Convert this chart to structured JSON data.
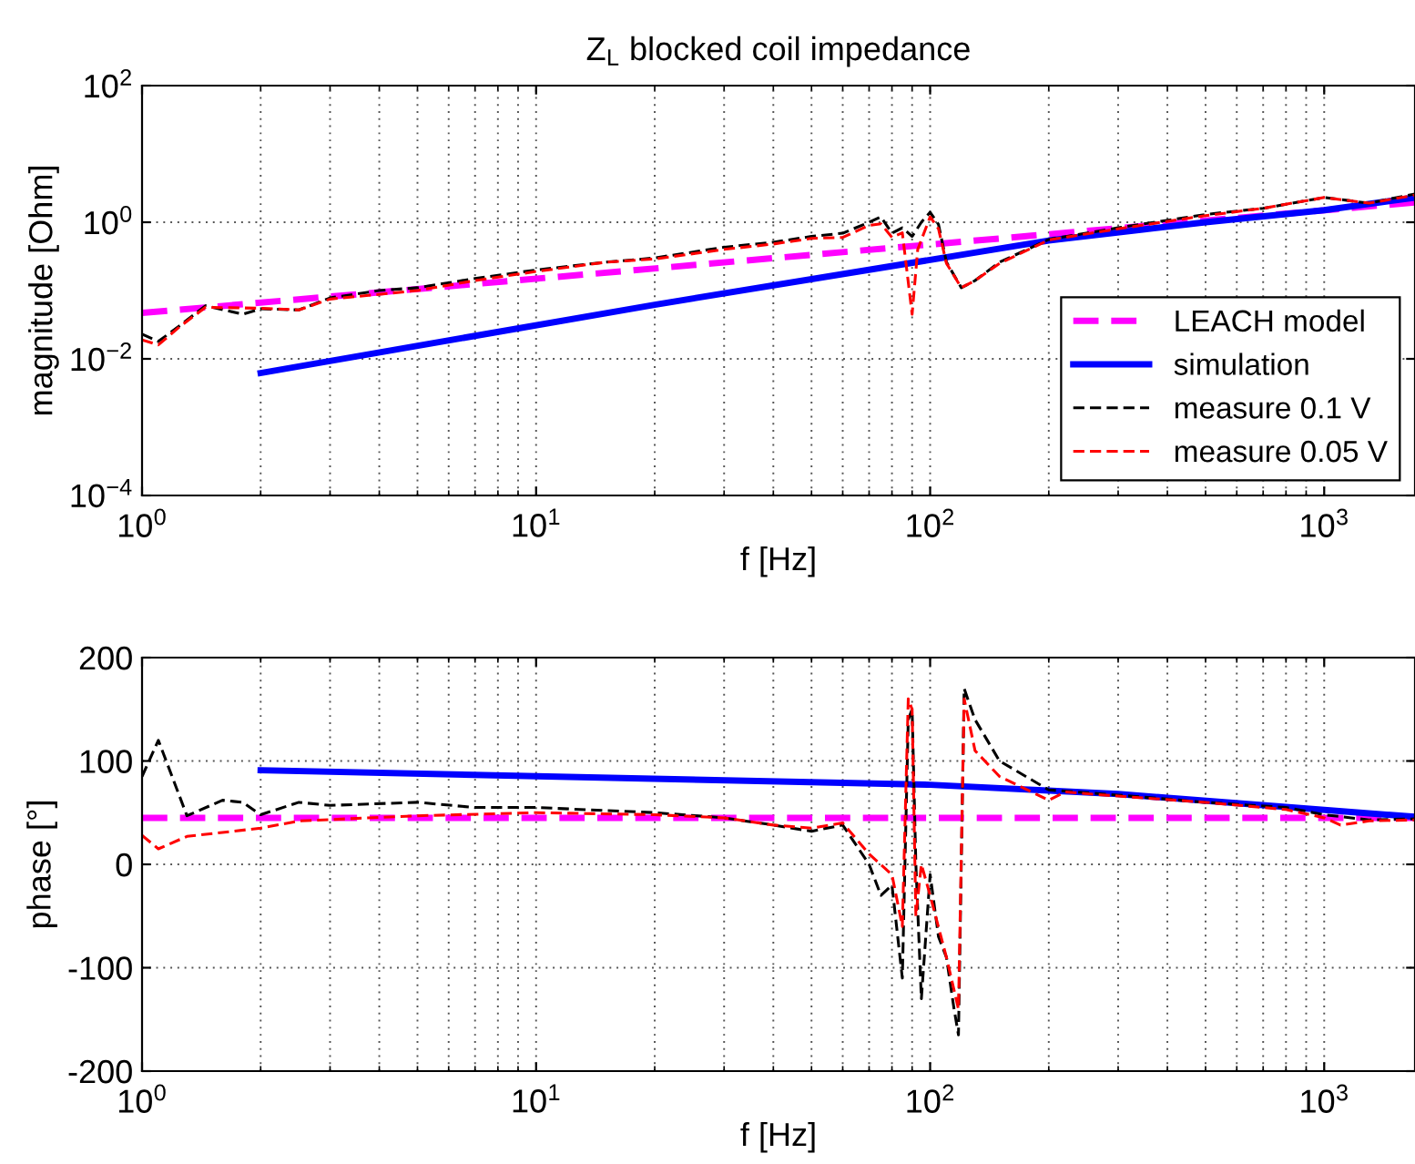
{
  "chart_data": [
    {
      "type": "line",
      "title": "Z$_{L}$ blocked coil impedance",
      "xlabel": "f [Hz]",
      "ylabel": "magnitude [Ohm]",
      "log": "xy",
      "grid": true,
      "legend": "bottom right",
      "xlim": [
        1,
        1700
      ],
      "xticks": [
        {
          "value": 1,
          "label": "10$^{0}$"
        },
        {
          "value": 10,
          "label": "10$^{1}$"
        },
        {
          "value": 100,
          "label": "10$^{2}$"
        },
        {
          "value": 1000,
          "label": "10$^{3}$"
        }
      ],
      "ylim": [
        0.0001,
        100
      ],
      "yticks": [
        {
          "value": 0.0001,
          "label": "10$^{−4}$"
        },
        {
          "value": 0.01,
          "label": "10$^{−2}$"
        },
        {
          "value": 1,
          "label": "10$^{0}$"
        },
        {
          "value": 100,
          "label": "10$^{2}$"
        }
      ],
      "series": [
        {
          "name": "LEACH model",
          "color": "#ff00ff",
          "line_style": "dashed",
          "x": [
            1,
            1700
          ],
          "values": [
            0.047,
            1.95
          ]
        },
        {
          "name": "simulation",
          "color": "#0000ff",
          "line_style": "solid",
          "x": [
            2,
            20,
            200,
            500,
            1000,
            1700
          ],
          "values": [
            0.0062,
            0.062,
            0.54,
            1.0,
            1.5,
            2.3
          ]
        },
        {
          "name": "measure 0.1 V",
          "color": "#000000",
          "line_style": "dashed",
          "x": [
            1,
            1.1,
            1.25,
            1.45,
            1.8,
            2,
            2.5,
            3,
            4,
            5,
            7,
            10,
            15,
            20,
            30,
            40,
            50,
            60,
            70,
            75,
            80,
            85,
            90,
            95,
            100,
            105,
            110,
            120,
            130,
            150,
            200,
            300,
            500,
            700,
            1000,
            1300,
            1700
          ],
          "values": [
            0.023,
            0.018,
            0.031,
            0.06,
            0.045,
            0.054,
            0.052,
            0.078,
            0.1,
            0.11,
            0.15,
            0.2,
            0.26,
            0.3,
            0.43,
            0.51,
            0.62,
            0.69,
            1.0,
            1.2,
            0.69,
            0.83,
            0.62,
            1.0,
            1.4,
            0.93,
            0.26,
            0.11,
            0.14,
            0.26,
            0.56,
            0.83,
            1.3,
            1.6,
            2.3,
            1.9,
            2.6
          ]
        },
        {
          "name": "measure 0.05 V",
          "color": "#ff0000",
          "line_style": "dashed",
          "x": [
            1,
            1.1,
            1.25,
            1.45,
            2,
            2.5,
            3,
            5,
            7,
            10,
            15,
            20,
            30,
            40,
            50,
            60,
            70,
            75,
            80,
            85,
            90,
            93,
            100,
            105,
            110,
            120,
            130,
            150,
            200,
            300,
            500,
            700,
            1000,
            1300,
            1700
          ],
          "values": [
            0.019,
            0.016,
            0.03,
            0.057,
            0.055,
            0.052,
            0.075,
            0.1,
            0.14,
            0.19,
            0.26,
            0.29,
            0.4,
            0.48,
            0.58,
            0.6,
            0.9,
            0.95,
            0.6,
            0.7,
            0.045,
            0.4,
            1.2,
            0.8,
            0.25,
            0.11,
            0.14,
            0.25,
            0.55,
            0.8,
            1.25,
            1.6,
            2.3,
            1.9,
            2.5
          ]
        }
      ]
    },
    {
      "type": "line",
      "xlabel": "f [Hz]",
      "ylabel": "phase [°]",
      "log": "x",
      "grid": true,
      "xlim": [
        1,
        1700
      ],
      "xticks": [
        {
          "value": 1,
          "label": "10$^{0}$"
        },
        {
          "value": 10,
          "label": "10$^{1}$"
        },
        {
          "value": 100,
          "label": "10$^{2}$"
        },
        {
          "value": 1000,
          "label": "10$^{3}$"
        }
      ],
      "ylim": [
        -200,
        200
      ],
      "yticks": [
        -200,
        -100,
        0,
        100,
        200
      ],
      "series": [
        {
          "color": "#ff00ff",
          "line_style": "dashed",
          "x": [
            1,
            1700
          ],
          "values": [
            45,
            45
          ]
        },
        {
          "color": "#0000ff",
          "line_style": "solid",
          "x": [
            2,
            100,
            300,
            1700
          ],
          "values": [
            91,
            77,
            68,
            46
          ]
        },
        {
          "color": "#000000",
          "line_style": "dashed",
          "x": [
            1,
            1.1,
            1.3,
            1.6,
            1.8,
            2,
            2.5,
            3,
            5,
            7,
            10,
            20,
            30,
            40,
            50,
            60,
            70,
            75,
            80,
            85,
            88,
            90,
            92,
            95,
            100,
            105,
            110,
            115,
            118,
            122,
            130,
            150,
            200,
            300,
            500,
            800,
            1000,
            1300,
            1700
          ],
          "values": [
            85,
            120,
            47,
            62,
            60,
            48,
            60,
            57,
            60,
            55,
            55,
            50,
            45,
            38,
            32,
            38,
            0,
            -30,
            -20,
            -110,
            140,
            150,
            0,
            -130,
            -10,
            -70,
            -90,
            -140,
            -165,
            170,
            140,
            100,
            72,
            67,
            60,
            55,
            48,
            43,
            44
          ]
        },
        {
          "color": "#ff0000",
          "line_style": "dashed",
          "x": [
            1,
            1.1,
            1.3,
            2,
            2.5,
            5,
            10,
            20,
            30,
            40,
            50,
            60,
            70,
            80,
            85,
            88,
            90,
            92,
            95,
            100,
            110,
            118,
            122,
            130,
            150,
            200,
            220,
            300,
            500,
            800,
            1000,
            1100,
            1300,
            1700
          ],
          "values": [
            28,
            15,
            27,
            35,
            42,
            47,
            50,
            48,
            45,
            38,
            35,
            40,
            10,
            -10,
            -60,
            160,
            150,
            -50,
            0,
            -30,
            -90,
            -140,
            160,
            110,
            85,
            62,
            70,
            66,
            60,
            53,
            45,
            38,
            42,
            43
          ]
        }
      ]
    }
  ]
}
